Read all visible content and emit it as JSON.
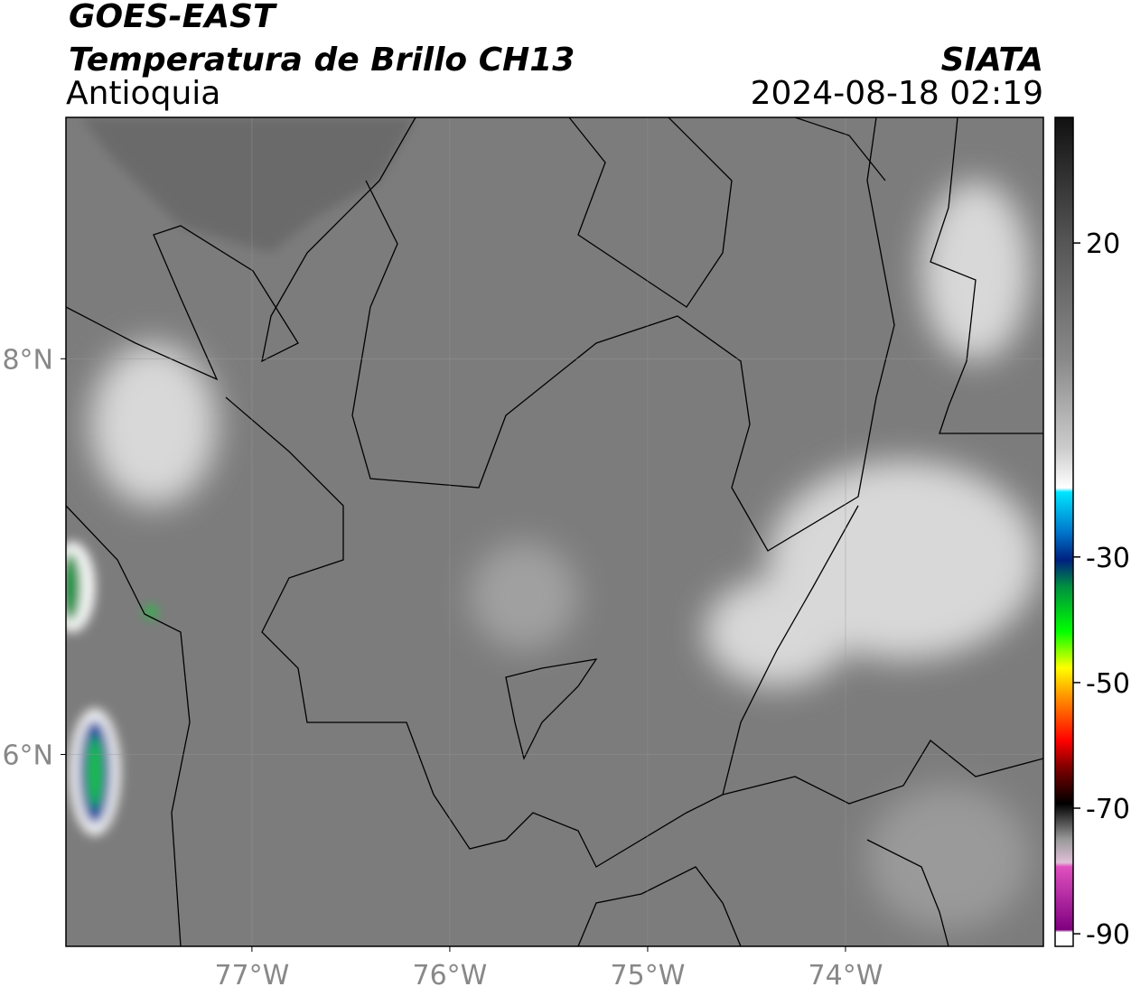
{
  "header": {
    "title": "GOES-EAST",
    "subtitle": "Temperatura de Brillo CH13",
    "region": "Antioquia",
    "source": "SIATA",
    "datetime": "2024-08-18 02:19"
  },
  "map": {
    "xlim": [
      -77.94,
      -73.0
    ],
    "ylim": [
      5.03,
      9.22
    ],
    "xticks": [
      {
        "value": -77,
        "label": "77°W"
      },
      {
        "value": -76,
        "label": "76°W"
      },
      {
        "value": -75,
        "label": "75°W"
      },
      {
        "value": -74,
        "label": "74°W"
      }
    ],
    "yticks": [
      {
        "value": 6,
        "label": "6°N"
      },
      {
        "value": 8,
        "label": "8°N"
      }
    ],
    "grid": true
  },
  "colorbar": {
    "lim": [
      -92,
      40
    ],
    "ticks": [
      20,
      -30,
      -50,
      -70,
      -90
    ]
  }
}
